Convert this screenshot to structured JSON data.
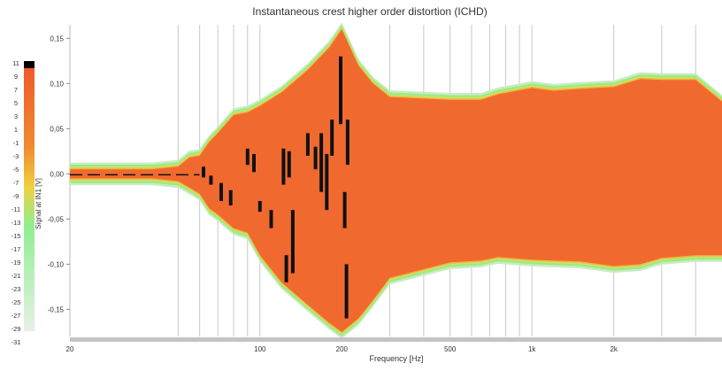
{
  "chart_data": {
    "type": "heatmap",
    "title": "Instantaneous crest higher order distortion (ICHD)",
    "xlabel": "Frequency [Hz]",
    "ylabel": "Signal at IN1  [V]",
    "x_scale": "log",
    "xlim": [
      20,
      5000
    ],
    "ylim": [
      -0.18,
      0.165
    ],
    "x_ticks": [
      {
        "value": 20,
        "label": "20"
      },
      {
        "value": 100,
        "label": "100"
      },
      {
        "value": 200,
        "label": "200"
      },
      {
        "value": 500,
        "label": "500"
      },
      {
        "value": 1000,
        "label": "1k"
      },
      {
        "value": 2000,
        "label": "2k"
      }
    ],
    "x_gridlines": [
      50,
      60,
      70,
      80,
      90,
      100,
      200,
      300,
      400,
      500,
      600,
      700,
      800,
      900,
      1000,
      2000,
      3000,
      4000
    ],
    "y_ticks": [
      {
        "value": 0.15,
        "label": "0,15"
      },
      {
        "value": 0.1,
        "label": "0,10"
      },
      {
        "value": 0.05,
        "label": "0,05"
      },
      {
        "value": 0.0,
        "label": "0,00"
      },
      {
        "value": -0.05,
        "label": "-0,05"
      },
      {
        "value": -0.1,
        "label": "-0,10"
      },
      {
        "value": -0.15,
        "label": "-0,15"
      }
    ],
    "colorbar": {
      "labels": [
        "11",
        "9",
        "7",
        "5",
        "3",
        "1",
        "-1",
        "-3",
        "-5",
        "-7",
        "-9",
        "-11",
        "-13",
        "-15",
        "-17",
        "-19",
        "-21",
        "-23",
        "-25",
        "-27",
        "-29",
        "-31"
      ],
      "min": -31,
      "max": 11,
      "colors": {
        "max": "#000000",
        "high": "#f05a2a",
        "mid": "#f0c030",
        "low": "#90ee90",
        "min": "#e6f0e6"
      }
    },
    "envelope": {
      "frequency_hz": [
        20,
        40,
        50,
        55,
        60,
        65,
        70,
        80,
        90,
        100,
        120,
        150,
        180,
        200,
        230,
        260,
        300,
        500,
        650,
        750,
        1000,
        1200,
        1500,
        2000,
        2500,
        3000,
        4000,
        5000
      ],
      "upper_v": [
        0.005,
        0.005,
        0.008,
        0.018,
        0.02,
        0.035,
        0.045,
        0.065,
        0.068,
        0.075,
        0.09,
        0.115,
        0.14,
        0.16,
        0.12,
        0.1,
        0.085,
        0.082,
        0.082,
        0.088,
        0.095,
        0.092,
        0.094,
        0.096,
        0.105,
        0.104,
        0.104,
        0.08
      ],
      "lower_v": [
        -0.005,
        -0.005,
        -0.008,
        -0.015,
        -0.022,
        -0.038,
        -0.045,
        -0.06,
        -0.065,
        -0.09,
        -0.12,
        -0.145,
        -0.165,
        -0.175,
        -0.16,
        -0.14,
        -0.115,
        -0.098,
        -0.096,
        -0.092,
        -0.095,
        -0.096,
        -0.097,
        -0.102,
        -0.1,
        -0.093,
        -0.09,
        -0.09
      ]
    },
    "grid": true
  }
}
